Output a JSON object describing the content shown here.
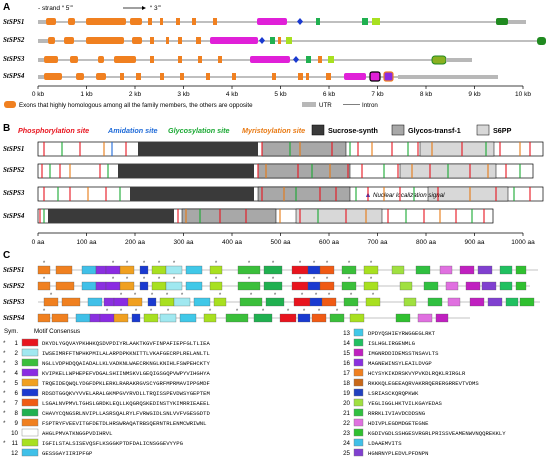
{
  "panels": {
    "a": "A",
    "b": "B",
    "c": "C"
  },
  "panel_a": {
    "strand_label": "- strand “ 5’”",
    "strand_end": "“ 3’”",
    "genes": [
      "StSPS1",
      "StSPS2",
      "StSPS3",
      "StSPS4"
    ],
    "scale_ticks": [
      "0 kb",
      "1 kb",
      "2 kb",
      "3 kb",
      "4 kb",
      "5 kb",
      "6 kb",
      "7 kb",
      "8 kb",
      "9 kb",
      "10 kb"
    ],
    "legend_exon": "Exons that highly homologous among all the family members, the others are opposite",
    "legend_utr": "UTR",
    "legend_intron": "Intron"
  },
  "panel_b": {
    "sites": [
      {
        "label": "Phosphorylation site",
        "color": "#e8141e"
      },
      {
        "label": "Amidation site",
        "color": "#1e6ad8"
      },
      {
        "label": "Glycosylation site",
        "color": "#19a832"
      },
      {
        "label": "Myristoylation site",
        "color": "#e87a14"
      }
    ],
    "domains": [
      {
        "label": "Sucrose-synth",
        "color": "#3a3a3a"
      },
      {
        "label": "Glycos-transf-1",
        "color": "#a8a8a8"
      },
      {
        "label": "S6PP",
        "color": "#d8d8d8"
      }
    ],
    "nls_label": "Nuclear localization signal",
    "axis_ticks": [
      "0 aa",
      "100 aa",
      "200 aa",
      "300 aa",
      "400 aa",
      "500 aa",
      "600 aa",
      "700 aa",
      "800 aa",
      "900 aa",
      "1000 aa"
    ]
  },
  "panel_c": {
    "header_sym": "Sym.",
    "header_motif": "Motif Consensus",
    "motifs_left": [
      {
        "n": "1",
        "star": "*",
        "color": "#e8141e",
        "seq": "DKYDLYGQVAYPKHHKQSDVPDIYRLAAKTKGVFINPAFIEPFGLTLIEA"
      },
      {
        "n": "2",
        "star": "*",
        "color": "#a0e8f0",
        "seq": "IWSEIMRFFTNPHKPMILALARPDPKKNITTLVKAFGECRPLRELANLTL"
      },
      {
        "n": "3",
        "star": "*",
        "color": "#3bbf3b",
        "seq": "NGLLVDPHDQQAIADALLKLVADKNLWAECRKNGLKNIHLFSWPEHCKTY"
      },
      {
        "n": "4",
        "star": "*",
        "color": "#8a2be2",
        "seq": "KVIPKELLWPHEPEFVDGALSHIINMSKVLGEQIGSGQPVWPYVIHGHYA"
      },
      {
        "n": "5",
        "star": "*",
        "color": "#f0a020",
        "seq": "TRQEIDEQWQLYDGFDPKLERKLRARAKRGVSCYGRFMPRMAVIPPGMDF"
      },
      {
        "n": "6",
        "star": "*",
        "color": "#1a3ad0",
        "seq": "RDSDTGGQKVYVVELARALGKMPGVYRVDLLTRQISSPEVDWSYGEPTEM"
      },
      {
        "n": "7",
        "star": "*",
        "color": "#f05a14",
        "seq": "LSGALNVPMVLTGHSLGRDKLEQLLKQGRQSKEDINSTYKIMRRIEAEEL"
      },
      {
        "n": "8",
        "star": "*",
        "color": "#20b050",
        "seq": "CHAVYCQNGSRLNVIPLLASRSQALRYLFVRWGIDLSNLVVFVGESGDTD"
      },
      {
        "n": "9",
        "star": "*",
        "color": "#f08020",
        "seq": "FSPTRYFVEEVITGFDETDLHRSWRAQATRBSQERNTRLENMCWRIWNL"
      },
      {
        "n": "10",
        "star": "",
        "color": "#ffffff",
        "seq": "AHGLPMVATKNGGPVDIHRVL"
      },
      {
        "n": "11",
        "star": "*",
        "color": "#a8e020",
        "seq": "IGFILSTALSISEVQSFLKSGGKPTDFDALICNSGGEVYYPG"
      },
      {
        "n": "12",
        "star": "",
        "color": "#40c0e8",
        "seq": "GESSGAYIIRIPFGP"
      }
    ],
    "motifs_right": [
      {
        "n": "13",
        "color": "#40c8e8",
        "seq": "DPDYQSHIEYRWGGEGLRKT"
      },
      {
        "n": "14",
        "color": "#20c060",
        "seq": "ISLHGLIRGENMLG"
      },
      {
        "n": "15",
        "color": "#c020c0",
        "seq": "IMGNRDDIDEMSSTNSAVLTS"
      },
      {
        "n": "16",
        "color": "#8a30e0",
        "seq": "MAGNEWINSYLEAILDVGP"
      },
      {
        "n": "17",
        "color": "#f08020",
        "seq": "HCYSYKIKDRSKVYPVKDLRQKLRIRGLR"
      },
      {
        "n": "18",
        "color": "#c86818",
        "seq": "RKKKQLEGEEAQRVAKRRQERERGRREVTVDMS"
      },
      {
        "n": "19",
        "color": "#2040c0",
        "seq": "LSRIASCKQRQPKWK"
      },
      {
        "n": "20",
        "color": "#a0e040",
        "seq": "YEGLIGGLHKTVILKGAYEDAS"
      },
      {
        "n": "21",
        "color": "#30c040",
        "seq": "RRRKLIVIAVDCDDSNG"
      },
      {
        "n": "22",
        "color": "#e070e0",
        "seq": "HDIVPLEGDMDGETEGNE"
      },
      {
        "n": "23",
        "color": "#30c030",
        "seq": "KGDIVGDLSSHGESVRGRLPRISSVEAMENWVNQQREKKLY"
      },
      {
        "n": "24",
        "color": "#40c0e8",
        "seq": "LDAAEMVITS"
      },
      {
        "n": "25",
        "color": "#8040d0",
        "seq": "HGNRNYPLEDVLPFDNPN"
      }
    ]
  }
}
